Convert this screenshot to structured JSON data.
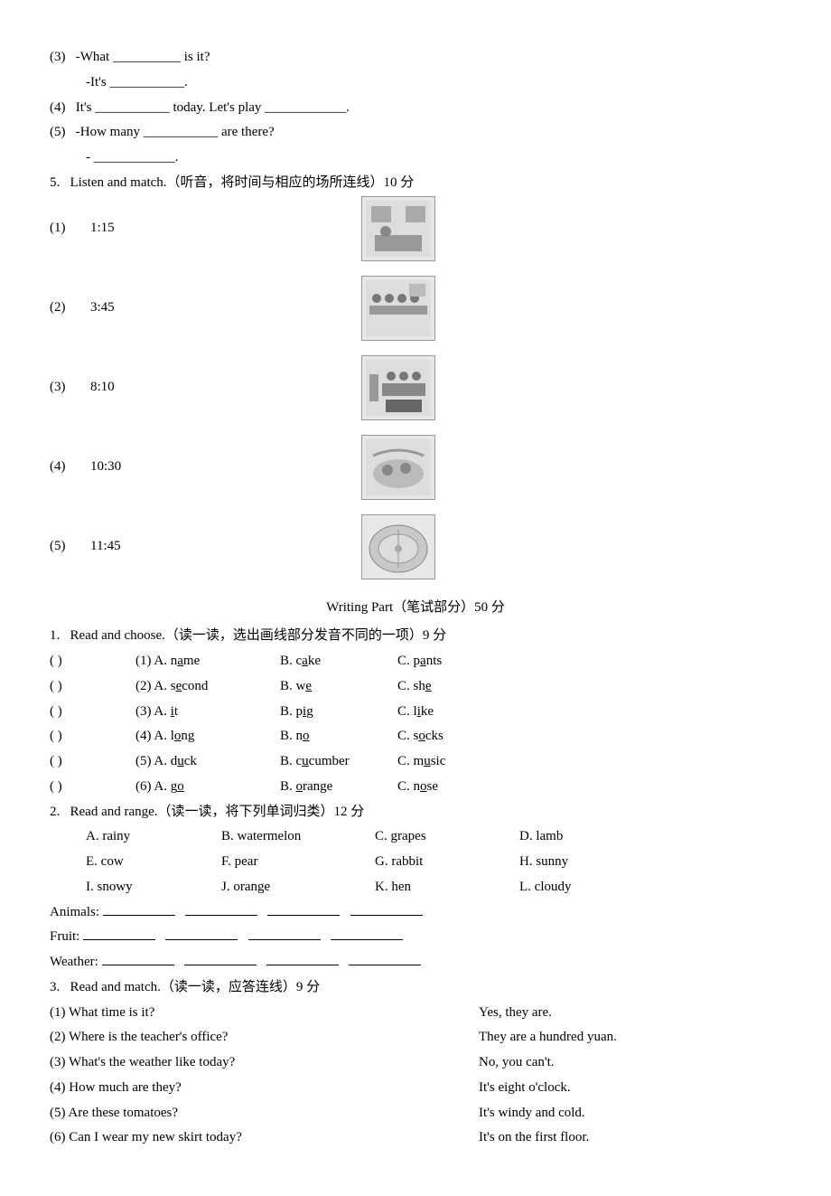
{
  "fill": {
    "i31": "-What __________ is it?",
    "i32": "-It's ___________.",
    "i4": "It's ___________ today. Let's play ____________.",
    "i51": "-How many ___________ are there?",
    "i52": "- ____________."
  },
  "sec5": {
    "title": "Listen and match.（听音，将时间与相应的场所连线）10 分",
    "rows": [
      {
        "n": "(1)",
        "t": "1:15"
      },
      {
        "n": "(2)",
        "t": "3:45"
      },
      {
        "n": "(3)",
        "t": "8:10"
      },
      {
        "n": "(4)",
        "t": "10:30"
      },
      {
        "n": "(5)",
        "t": "11:45"
      }
    ]
  },
  "writing_title": "Writing Part（笔试部分）50 分",
  "w1": {
    "title": "Read and choose.（读一读，选出画线部分发音不同的一项）9 分",
    "rows": [
      {
        "n": "(1)",
        "a1": "n",
        "au": "a",
        "a2": "me",
        "b1": "c",
        "bu": "a",
        "b2": "ke",
        "c1": "p",
        "cu": "a",
        "c2": "nts"
      },
      {
        "n": "(2)",
        "a1": "s",
        "au": "e",
        "a2": "cond",
        "b1": "w",
        "bu": "e",
        "b2": "",
        "c1": "sh",
        "cu": "e",
        "c2": ""
      },
      {
        "n": "(3)",
        "a1": "",
        "au": "i",
        "a2": "t",
        "b1": "p",
        "bu": "i",
        "b2": "g",
        "c1": "l",
        "cu": "i",
        "c2": "ke"
      },
      {
        "n": "(4)",
        "a1": "l",
        "au": "o",
        "a2": "ng",
        "b1": "n",
        "bu": "o",
        "b2": "",
        "c1": "s",
        "cu": "o",
        "c2": "cks"
      },
      {
        "n": "(5)",
        "a1": "d",
        "au": "u",
        "a2": "ck",
        "b1": "c",
        "bu": "u",
        "b2": "cumber",
        "c1": "m",
        "cu": "u",
        "c2": "sic"
      },
      {
        "n": "(6)",
        "a1": "g",
        "au": "o",
        "a2": "",
        "b1": "",
        "bu": "o",
        "b2": "range",
        "c1": "n",
        "cu": "o",
        "c2": "se"
      }
    ]
  },
  "w2": {
    "title": "Read and range.（读一读，将下列单词归类）12 分",
    "rows": [
      [
        {
          "l": "A. rainy"
        },
        {
          "l": "B. watermelon"
        },
        {
          "l": "C. grapes"
        },
        {
          "l": "D. lamb"
        }
      ],
      [
        {
          "l": "E. cow"
        },
        {
          "l": "F. pear"
        },
        {
          "l": "G. rabbit"
        },
        {
          "l": "H. sunny"
        }
      ],
      [
        {
          "l": "I. snowy"
        },
        {
          "l": "J. orange"
        },
        {
          "l": "K. hen"
        },
        {
          "l": "L. cloudy"
        }
      ]
    ],
    "cats": [
      "Animals:",
      "Fruit:",
      "Weather:"
    ]
  },
  "w3": {
    "title": "Read and match.（读一读，应答连线）9 分",
    "pairs": [
      {
        "q": "(1) What time is it?",
        "a": "Yes, they are."
      },
      {
        "q": "(2) Where is the teacher's office?",
        "a": "They are a hundred yuan."
      },
      {
        "q": "(3) What's the weather like today?",
        "a": " No, you can't."
      },
      {
        "q": "(4) How much are they?",
        "a": " It's eight o'clock."
      },
      {
        "q": "(5) Are these tomatoes?",
        "a": " It's windy and cold."
      },
      {
        "q": "(6) Can I wear my new skirt today?",
        "a": " It's on the first floor."
      }
    ]
  },
  "labels": {
    "paren": "(          )",
    "num3": "(3)",
    "num4": "(4)",
    "num5": "(5)",
    "s5": "5.",
    "s1": "1.",
    "s2": "2.",
    "s3": "3."
  }
}
